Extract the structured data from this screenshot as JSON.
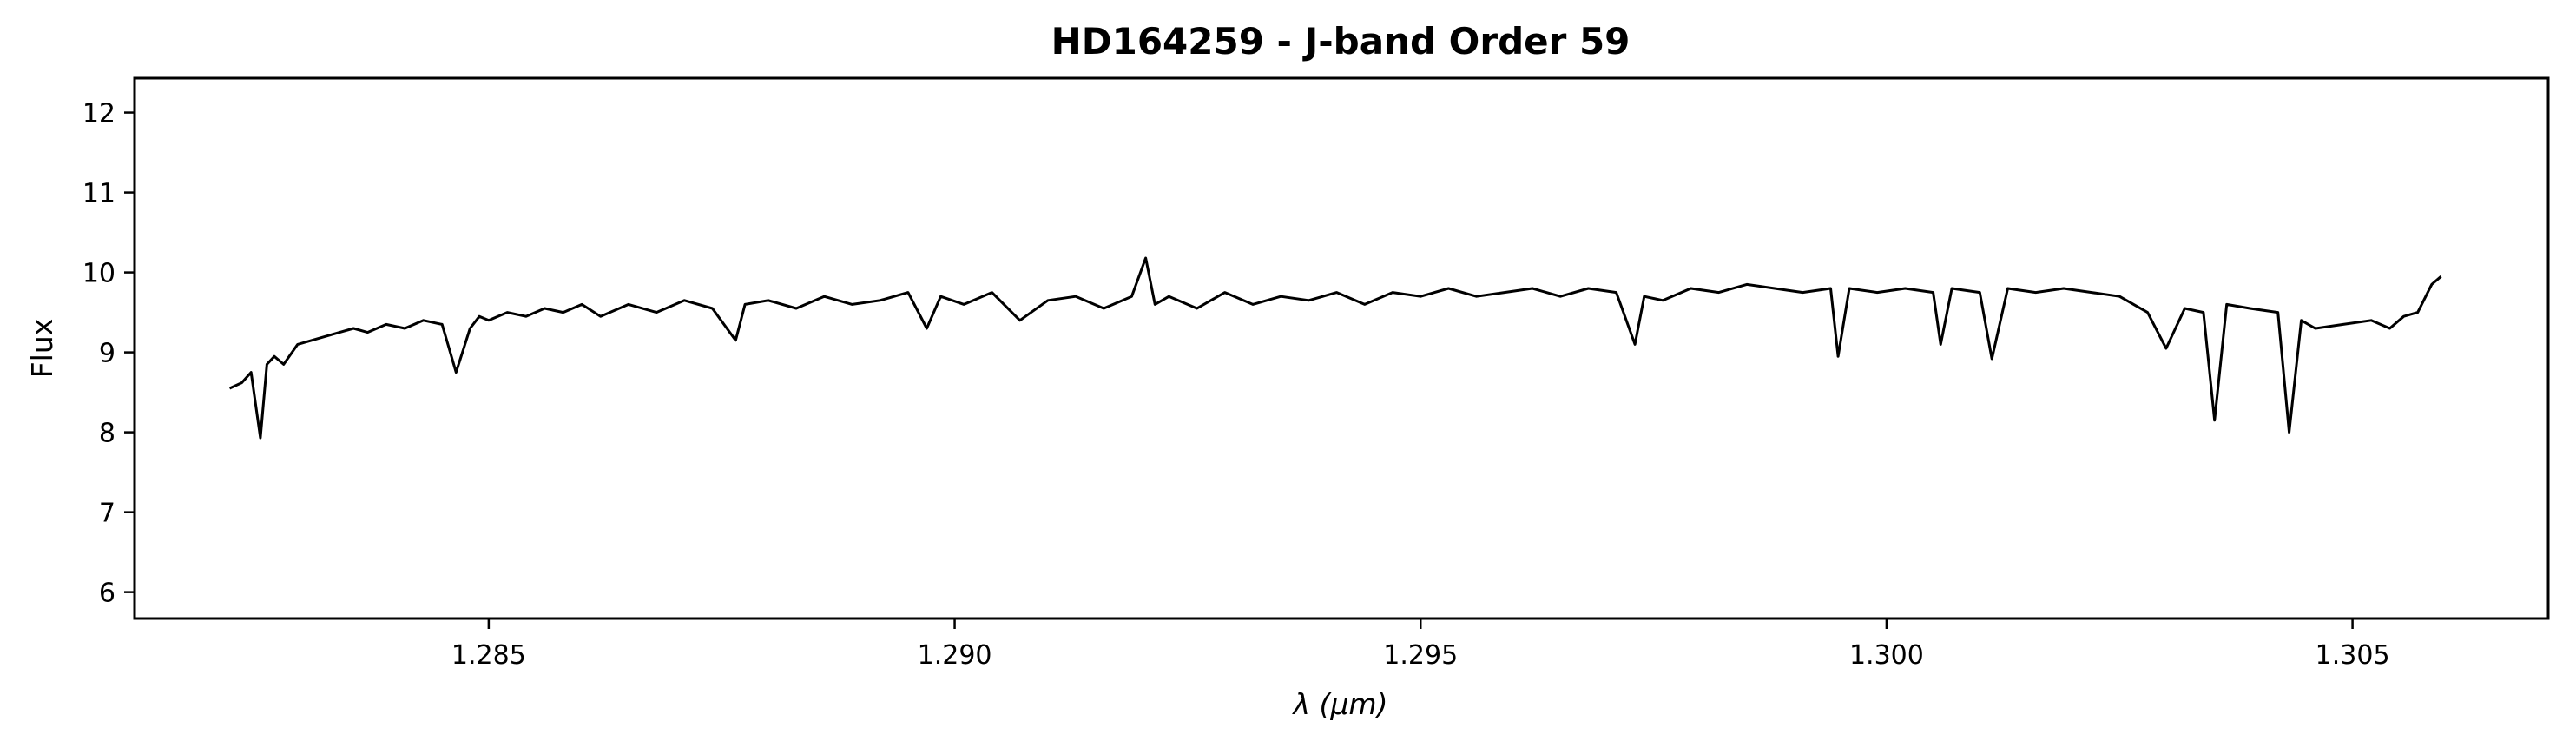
{
  "chart_data": {
    "type": "line",
    "title": "HD164259 - J-band Order 59",
    "xlabel": "λ (μm)",
    "ylabel": "Flux",
    "xlim": [
      1.2812,
      1.3071
    ],
    "ylim": [
      5.67,
      12.43
    ],
    "xticks": [
      1.285,
      1.29,
      1.295,
      1.3,
      1.305
    ],
    "xtick_labels": [
      "1.285",
      "1.290",
      "1.295",
      "1.300",
      "1.305"
    ],
    "yticks": [
      6,
      7,
      8,
      9,
      10,
      11,
      12
    ],
    "ytick_labels": [
      "6",
      "7",
      "8",
      "9",
      "10",
      "11",
      "12"
    ],
    "grid": false,
    "line_color": "#000000",
    "series": [
      {
        "x": [
          1.28222,
          1.28235,
          1.28245,
          1.28255,
          1.28262,
          1.2827,
          1.2828,
          1.28295,
          1.2831,
          1.28325,
          1.2834,
          1.28355,
          1.2837,
          1.2839,
          1.2841,
          1.2843,
          1.2845,
          1.28465,
          1.2848,
          1.2849,
          1.285,
          1.2852,
          1.2854,
          1.2856,
          1.2858,
          1.286,
          1.2862,
          1.2865,
          1.2868,
          1.2871,
          1.2874,
          1.28765,
          1.28775,
          1.288,
          1.2883,
          1.2886,
          1.2889,
          1.2892,
          1.2895,
          1.2897,
          1.28985,
          1.2901,
          1.2904,
          1.2907,
          1.291,
          1.2913,
          1.2916,
          1.2919,
          1.29205,
          1.29215,
          1.2923,
          1.2926,
          1.2929,
          1.2932,
          1.2935,
          1.2938,
          1.2941,
          1.2944,
          1.2947,
          1.295,
          1.2953,
          1.2956,
          1.2959,
          1.2962,
          1.2965,
          1.2968,
          1.2971,
          1.2973,
          1.2974,
          1.2976,
          1.2979,
          1.2982,
          1.2985,
          1.2988,
          1.2991,
          1.2994,
          1.29948,
          1.2996,
          1.2999,
          1.3002,
          1.3005,
          1.30058,
          1.3007,
          1.301,
          1.30113,
          1.3013,
          1.3016,
          1.3019,
          1.3022,
          1.3025,
          1.3028,
          1.303,
          1.3032,
          1.3034,
          1.30352,
          1.30365,
          1.3039,
          1.3042,
          1.30432,
          1.30445,
          1.3046,
          1.3049,
          1.3052,
          1.3054,
          1.30555,
          1.3057,
          1.30585,
          1.30595
        ],
        "y": [
          8.55,
          8.62,
          8.75,
          7.93,
          8.85,
          8.95,
          8.85,
          9.1,
          9.15,
          9.2,
          9.25,
          9.3,
          9.25,
          9.35,
          9.3,
          9.4,
          9.35,
          8.75,
          9.3,
          9.45,
          9.4,
          9.5,
          9.45,
          9.55,
          9.5,
          9.6,
          9.45,
          9.6,
          9.5,
          9.65,
          9.55,
          9.15,
          9.6,
          9.65,
          9.55,
          9.7,
          9.6,
          9.65,
          9.75,
          9.3,
          9.7,
          9.6,
          9.75,
          9.4,
          9.65,
          9.7,
          9.55,
          9.7,
          10.18,
          9.6,
          9.7,
          9.55,
          9.75,
          9.6,
          9.7,
          9.65,
          9.75,
          9.6,
          9.75,
          9.7,
          9.8,
          9.7,
          9.75,
          9.8,
          9.7,
          9.8,
          9.75,
          9.1,
          9.7,
          9.65,
          9.8,
          9.75,
          9.85,
          9.8,
          9.75,
          9.8,
          8.95,
          9.8,
          9.75,
          9.8,
          9.75,
          9.1,
          9.8,
          9.75,
          8.92,
          9.8,
          9.75,
          9.8,
          9.75,
          9.7,
          9.5,
          9.05,
          9.55,
          9.5,
          8.15,
          9.6,
          9.55,
          9.5,
          8.0,
          9.4,
          9.3,
          9.35,
          9.4,
          9.3,
          9.45,
          9.5,
          9.85,
          9.95
        ]
      }
    ]
  }
}
